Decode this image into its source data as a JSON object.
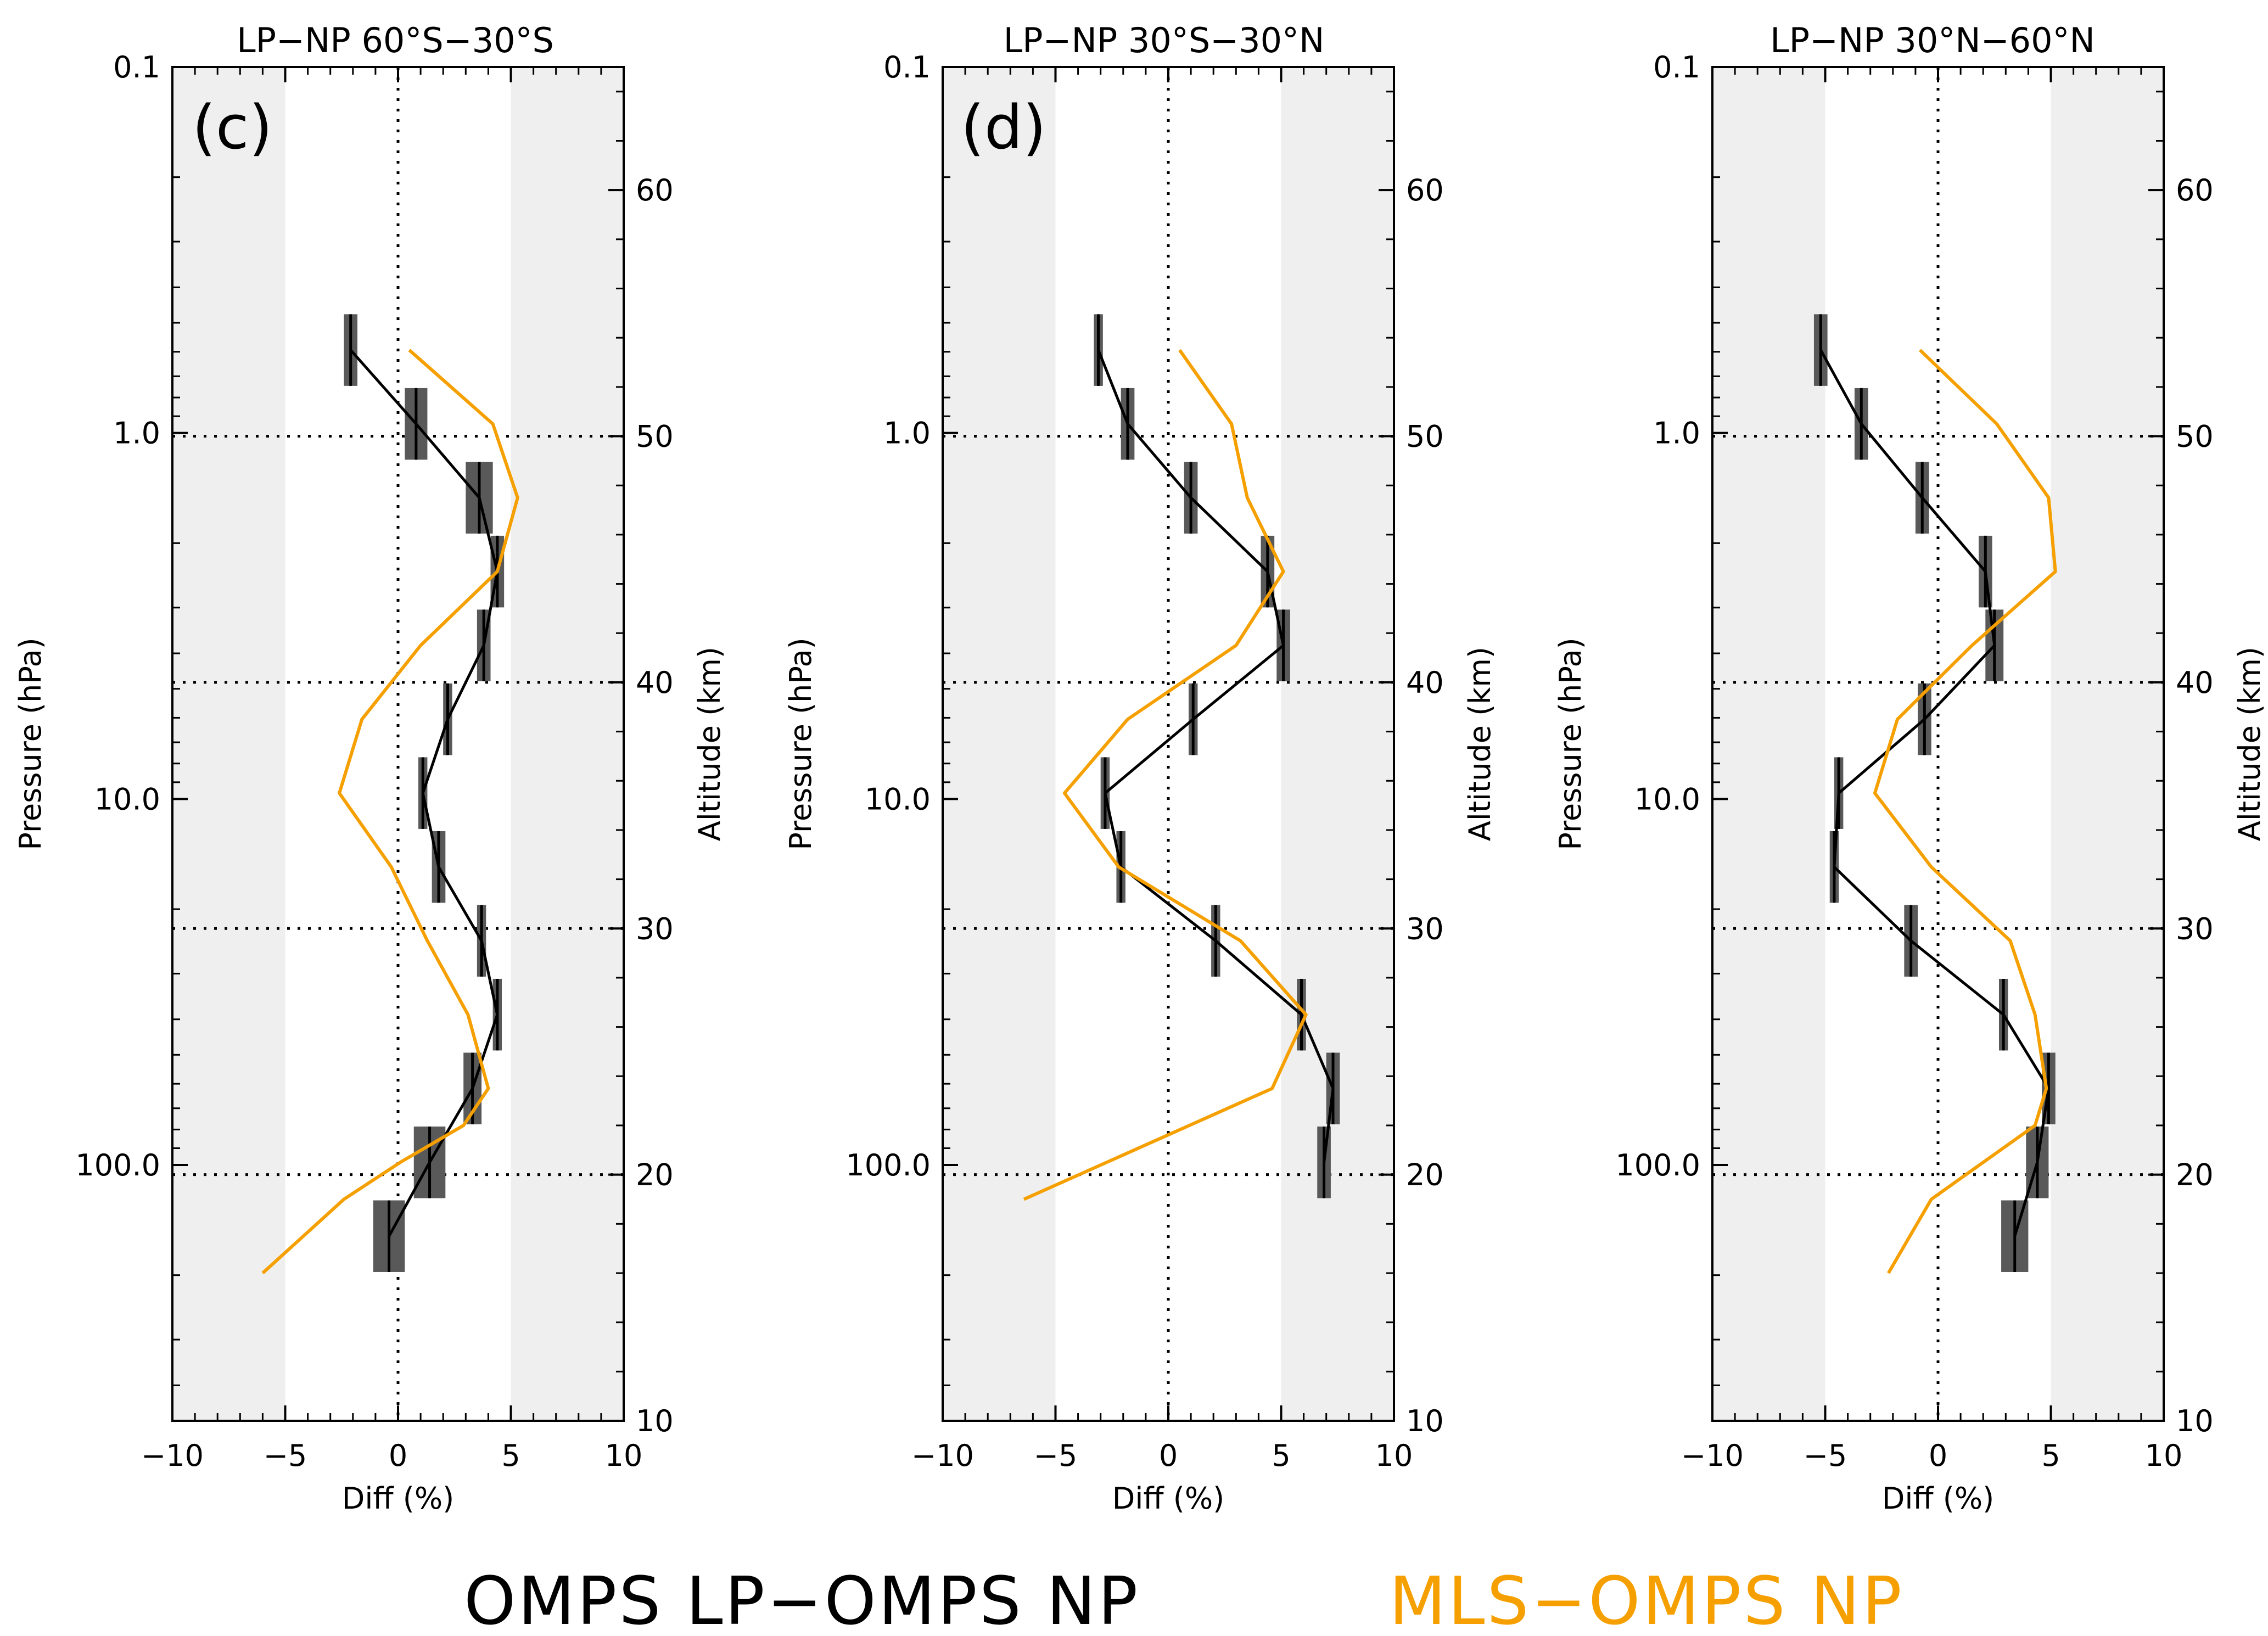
{
  "figure": {
    "legend": [
      {
        "label": "OMPS LP−OMPS NP",
        "color": "#000000"
      },
      {
        "label": "MLS−OMPS NP",
        "color": "#f5a000"
      }
    ]
  },
  "chart_data": [
    {
      "type": "line",
      "panel_letter": "(c)",
      "title": "LP−NP  60°S−30°S",
      "xlabel": "Diff (%)",
      "ylabel": "Pressure (hPa)",
      "y2label": "Altitude (km)",
      "xlim": [
        -10,
        10
      ],
      "x_ticks": [
        "−10",
        "−5",
        "0",
        "5",
        "10"
      ],
      "x_tick_values": [
        -10,
        -5,
        0,
        5,
        10
      ],
      "y_ticks": [
        "0.1",
        "1.0",
        "10.0",
        "100.0"
      ],
      "y_tick_values": [
        0.1,
        1,
        10,
        100
      ],
      "alt_ticks": [
        "10",
        "20",
        "30",
        "40",
        "50",
        "60"
      ],
      "alt_tick_values": [
        10,
        20,
        30,
        40,
        50,
        60
      ],
      "alt_lim": [
        10,
        65
      ],
      "ylim_pressure": [
        0.1,
        500
      ],
      "shaded_regions": [
        [
          -10,
          -5
        ],
        [
          5,
          10
        ]
      ],
      "reference_lines": {
        "x": [
          0
        ],
        "altitude": [
          20,
          30,
          40,
          50
        ]
      },
      "series": [
        {
          "name": "OMPS LP−OMPS NP",
          "color": "#000000",
          "altitude": [
            53.5,
            50.5,
            47.5,
            44.5,
            41.5,
            38.5,
            35.5,
            32.5,
            29.5,
            26.5,
            23.5,
            20.5,
            17.5
          ],
          "values": [
            -2.1,
            0.8,
            3.6,
            4.4,
            3.8,
            2.2,
            1.1,
            1.8,
            3.7,
            4.4,
            3.3,
            1.4,
            -0.4
          ],
          "error": [
            0.3,
            0.5,
            0.6,
            0.3,
            0.3,
            0.2,
            0.2,
            0.3,
            0.2,
            0.2,
            0.4,
            0.7,
            0.7
          ]
        },
        {
          "name": "MLS−OMPS NP",
          "color": "#f5a000",
          "altitude": [
            53.5,
            50.5,
            47.5,
            44.5,
            41.5,
            38.5,
            35.5,
            32.5,
            29.5,
            26.5,
            23.5,
            22.0,
            20.5,
            19.0,
            16.0
          ],
          "values": [
            0.5,
            4.2,
            5.3,
            4.4,
            1.0,
            -1.6,
            -2.6,
            -0.3,
            1.3,
            3.1,
            4.0,
            2.9,
            0.1,
            -2.4,
            -6.0
          ]
        }
      ]
    },
    {
      "type": "line",
      "panel_letter": "(d)",
      "title": "LP−NP  30°S−30°N",
      "xlabel": "Diff (%)",
      "ylabel": "Pressure (hPa)",
      "y2label": "Altitude (km)",
      "xlim": [
        -10,
        10
      ],
      "x_ticks": [
        "−10",
        "−5",
        "0",
        "5",
        "10"
      ],
      "x_tick_values": [
        -10,
        -5,
        0,
        5,
        10
      ],
      "y_ticks": [
        "0.1",
        "1.0",
        "10.0",
        "100.0"
      ],
      "y_tick_values": [
        0.1,
        1,
        10,
        100
      ],
      "alt_ticks": [
        "10",
        "20",
        "30",
        "40",
        "50",
        "60"
      ],
      "alt_tick_values": [
        10,
        20,
        30,
        40,
        50,
        60
      ],
      "alt_lim": [
        10,
        65
      ],
      "ylim_pressure": [
        0.1,
        500
      ],
      "shaded_regions": [
        [
          -10,
          -5
        ],
        [
          5,
          10
        ]
      ],
      "reference_lines": {
        "x": [
          0
        ],
        "altitude": [
          20,
          30,
          40,
          50
        ]
      },
      "series": [
        {
          "name": "OMPS LP−OMPS NP",
          "color": "#000000",
          "altitude": [
            53.5,
            50.5,
            47.5,
            44.5,
            41.5,
            38.5,
            35.5,
            32.5,
            29.5,
            26.5,
            23.5,
            20.5
          ],
          "values": [
            -3.1,
            -1.8,
            1.0,
            4.4,
            5.1,
            1.1,
            -2.8,
            -2.1,
            2.1,
            5.9,
            7.3,
            6.9
          ],
          "error": [
            0.2,
            0.3,
            0.3,
            0.3,
            0.3,
            0.2,
            0.2,
            0.2,
            0.2,
            0.2,
            0.3,
            0.3
          ]
        },
        {
          "name": "MLS−OMPS NP",
          "color": "#f5a000",
          "altitude": [
            53.5,
            50.5,
            47.5,
            44.5,
            41.5,
            38.5,
            35.5,
            32.5,
            29.5,
            26.5,
            23.5,
            19.0
          ],
          "values": [
            0.5,
            2.8,
            3.5,
            5.1,
            3.0,
            -1.8,
            -4.6,
            -2.2,
            3.2,
            6.1,
            4.6,
            -6.4
          ]
        }
      ]
    },
    {
      "type": "line",
      "panel_letter": "",
      "title": "LP−NP  30°N−60°N",
      "xlabel": "Diff (%)",
      "ylabel": "Pressure (hPa)",
      "y2label": "Altitude (km)",
      "xlim": [
        -10,
        10
      ],
      "x_ticks": [
        "−10",
        "−5",
        "0",
        "5",
        "10"
      ],
      "x_tick_values": [
        -10,
        -5,
        0,
        5,
        10
      ],
      "y_ticks": [
        "0.1",
        "1.0",
        "10.0",
        "100.0"
      ],
      "y_tick_values": [
        0.1,
        1,
        10,
        100
      ],
      "alt_ticks": [
        "10",
        "20",
        "30",
        "40",
        "50",
        "60"
      ],
      "alt_tick_values": [
        10,
        20,
        30,
        40,
        50,
        60
      ],
      "alt_lim": [
        10,
        65
      ],
      "ylim_pressure": [
        0.1,
        500
      ],
      "shaded_regions": [
        [
          -10,
          -5
        ],
        [
          5,
          10
        ]
      ],
      "reference_lines": {
        "x": [
          0
        ],
        "altitude": [
          20,
          30,
          40,
          50
        ]
      },
      "series": [
        {
          "name": "OMPS LP−OMPS NP",
          "color": "#000000",
          "altitude": [
            53.5,
            50.5,
            47.5,
            44.5,
            41.5,
            38.5,
            35.5,
            32.5,
            29.5,
            26.5,
            23.5,
            20.5,
            17.5
          ],
          "values": [
            -5.2,
            -3.4,
            -0.7,
            2.1,
            2.5,
            -0.6,
            -4.4,
            -4.6,
            -1.2,
            2.9,
            4.9,
            4.4,
            3.4
          ],
          "error": [
            0.3,
            0.3,
            0.3,
            0.3,
            0.4,
            0.3,
            0.2,
            0.2,
            0.3,
            0.2,
            0.3,
            0.5,
            0.6
          ]
        },
        {
          "name": "MLS−OMPS NP",
          "color": "#f5a000",
          "altitude": [
            53.5,
            50.5,
            47.5,
            44.5,
            41.5,
            38.5,
            35.5,
            32.5,
            29.5,
            26.5,
            23.5,
            22.0,
            19.0,
            16.0
          ],
          "values": [
            -0.8,
            2.6,
            4.9,
            5.2,
            1.5,
            -1.8,
            -2.8,
            -0.3,
            3.2,
            4.3,
            4.8,
            4.3,
            -0.3,
            -2.2
          ]
        }
      ]
    }
  ]
}
